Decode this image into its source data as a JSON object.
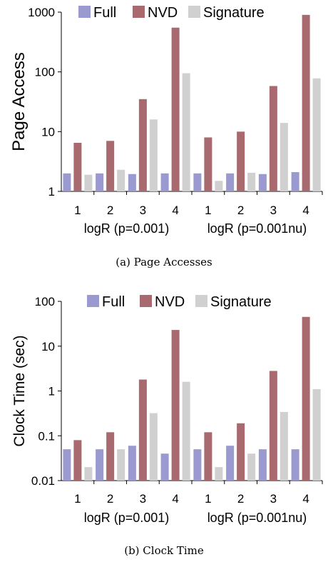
{
  "chart_data": [
    {
      "type": "bar",
      "caption": "(a) Page Accesses",
      "ylabel": "Page Access",
      "yscale": "log",
      "ylim": [
        1,
        1000
      ],
      "yticks": [
        1,
        10,
        100,
        1000
      ],
      "ytick_labels": [
        "1",
        "10",
        "100",
        "1000"
      ],
      "categories": [
        "1",
        "2",
        "3",
        "4",
        "1",
        "2",
        "3",
        "4"
      ],
      "group_labels": [
        "logR (p=0.001)",
        "logR (p=0.001nu)"
      ],
      "legend": "top",
      "series": [
        {
          "name": "Full",
          "color": "#9a9ad0",
          "values": [
            2.0,
            2.0,
            1.95,
            2.0,
            2.0,
            2.0,
            1.95,
            2.1
          ]
        },
        {
          "name": "NVD",
          "color": "#a86a6e",
          "values": [
            6.5,
            7.0,
            35,
            550,
            8.0,
            10,
            58,
            900
          ]
        },
        {
          "name": "Signature",
          "color": "#d0d0d0",
          "values": [
            1.9,
            2.3,
            16,
            95,
            1.5,
            2.05,
            14,
            78
          ]
        }
      ]
    },
    {
      "type": "bar",
      "caption": "(b) Clock Time",
      "ylabel": "Clock Time (sec)",
      "yscale": "log",
      "ylim": [
        0.01,
        100
      ],
      "yticks": [
        0.01,
        0.1,
        1,
        10,
        100
      ],
      "ytick_labels": [
        "0.01",
        "0.1",
        "1",
        "10",
        "100"
      ],
      "categories": [
        "1",
        "2",
        "3",
        "4",
        "1",
        "2",
        "3",
        "4"
      ],
      "group_labels": [
        "logR (p=0.001)",
        "logR (p=0.001nu)"
      ],
      "legend": "top",
      "series": [
        {
          "name": "Full",
          "color": "#9a9ad0",
          "values": [
            0.05,
            0.05,
            0.06,
            0.04,
            0.05,
            0.06,
            0.05,
            0.05
          ]
        },
        {
          "name": "NVD",
          "color": "#a86a6e",
          "values": [
            0.08,
            0.12,
            1.8,
            23,
            0.12,
            0.19,
            2.8,
            45
          ]
        },
        {
          "name": "Signature",
          "color": "#d0d0d0",
          "values": [
            0.02,
            0.05,
            0.32,
            1.6,
            0.02,
            0.04,
            0.34,
            1.1
          ]
        }
      ]
    }
  ]
}
